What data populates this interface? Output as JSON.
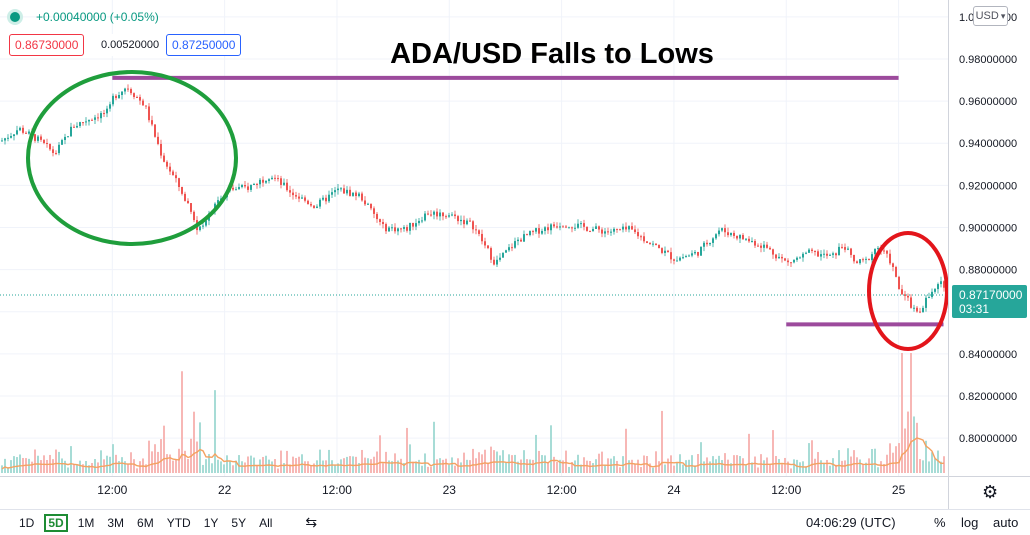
{
  "header": {
    "change_text": "+0.00040000 (+0.05%)",
    "bid": "0.86730000",
    "spread": "0.00520000",
    "ask": "0.87250000"
  },
  "title": "ADA/USD Falls to Lows",
  "currency_button": "USD",
  "last_price": {
    "price": "0.87170000",
    "countdown": "03:31"
  },
  "bottom_bar": {
    "ranges": [
      {
        "label": "1D",
        "selected": false
      },
      {
        "label": "5D",
        "selected": true
      },
      {
        "label": "1M",
        "selected": false
      },
      {
        "label": "3M",
        "selected": false
      },
      {
        "label": "6M",
        "selected": false
      },
      {
        "label": "YTD",
        "selected": false
      },
      {
        "label": "1Y",
        "selected": false
      },
      {
        "label": "5Y",
        "selected": false
      },
      {
        "label": "All",
        "selected": false
      }
    ],
    "clock": "04:06:29 (UTC)",
    "percent": "%",
    "log": "log",
    "auto": "auto"
  },
  "icons": {
    "status": "status-dot-icon",
    "settings": "gear-icon",
    "calendar": "calendar-range-icon"
  },
  "colors": {
    "up": "#26a69a",
    "down": "#ef5350",
    "annotation_line": "#9c4a9c",
    "circle_green": "#1f9e3c",
    "circle_red": "#e3151b",
    "volume_ma": "#f4a261"
  },
  "chart_data": {
    "type": "line",
    "subtype": "candlestick",
    "y_axis": {
      "ticks": [
        "1.00000000",
        "0.98000000",
        "0.96000000",
        "0.94000000",
        "0.92000000",
        "0.90000000",
        "0.88000000",
        "0.86000000",
        "0.84000000",
        "0.82000000",
        "0.80000000"
      ],
      "range": [
        0.782,
        1.008
      ],
      "side": "right"
    },
    "x_axis": {
      "ticks": [
        "12:00",
        "22",
        "12:00",
        "23",
        "12:00",
        "24",
        "12:00",
        "25"
      ],
      "range_days": [
        0,
        4.22
      ]
    },
    "series": [
      {
        "x": [
          0.0,
          0.08,
          0.16,
          0.24,
          0.32,
          0.4,
          0.48,
          0.5,
          0.56,
          0.64,
          0.68,
          0.72,
          0.8,
          0.85,
          0.88,
          0.96,
          1.02,
          1.1,
          1.2,
          1.3,
          1.4,
          1.5,
          1.6,
          1.7,
          1.8,
          1.9,
          2.0,
          2.1,
          2.2,
          2.3,
          2.4,
          2.5,
          2.6,
          2.7,
          2.8,
          2.9,
          3.0,
          3.1,
          3.2,
          3.3,
          3.4,
          3.5,
          3.6,
          3.7,
          3.75,
          3.8,
          3.85,
          3.9,
          3.92,
          3.96,
          4.0,
          4.04,
          4.08,
          4.12,
          4.14,
          4.18
        ],
        "y": [
          0.941,
          0.947,
          0.942,
          0.935,
          0.948,
          0.952,
          0.955,
          0.962,
          0.967,
          0.958,
          0.945,
          0.933,
          0.918,
          0.908,
          0.898,
          0.913,
          0.918,
          0.919,
          0.925,
          0.916,
          0.91,
          0.918,
          0.915,
          0.9,
          0.899,
          0.907,
          0.906,
          0.901,
          0.883,
          0.894,
          0.899,
          0.902,
          0.9,
          0.898,
          0.899,
          0.892,
          0.885,
          0.888,
          0.899,
          0.895,
          0.891,
          0.883,
          0.888,
          0.886,
          0.892,
          0.883,
          0.884,
          0.891,
          0.889,
          0.884,
          0.87,
          0.865,
          0.859,
          0.866,
          0.868,
          0.873
        ]
      }
    ],
    "annotations": [
      {
        "type": "horizontal-line",
        "y": 0.971,
        "x_range": [
          0.5,
          4.0
        ]
      },
      {
        "type": "horizontal-line",
        "y": 0.854,
        "x_range": [
          3.5,
          4.2
        ]
      },
      {
        "type": "ellipse",
        "color": "green"
      },
      {
        "type": "ellipse",
        "color": "red"
      }
    ],
    "volume_spikes_visible": true,
    "grid": true
  }
}
